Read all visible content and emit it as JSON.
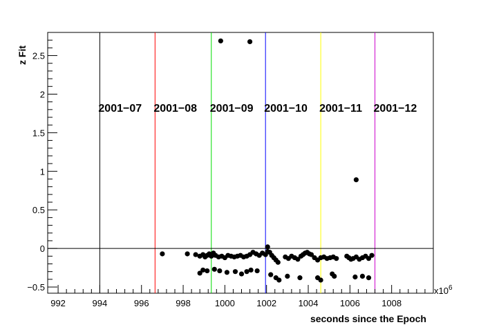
{
  "chart_data": {
    "type": "scatter",
    "title": "",
    "xlabel": "seconds since the Epoch",
    "ylabel": "z Fit",
    "x_multiplier": "x10",
    "x_multiplier_exp": "6",
    "xlim": [
      991.5,
      1010
    ],
    "ylim": [
      -0.58,
      2.8
    ],
    "x_ticks": [
      992,
      994,
      996,
      998,
      1000,
      1002,
      1004,
      1006,
      1008
    ],
    "y_ticks": [
      -0.5,
      0,
      0.5,
      1,
      1.5,
      2,
      2.5
    ],
    "y_tick_labels": [
      "−0.5",
      "0",
      "0.5",
      "1",
      "1.5",
      "2",
      "2.5"
    ],
    "grid": false,
    "zero_line": true,
    "month_markers": [
      {
        "x": 994.0,
        "label": "2001−07",
        "color": "#000000"
      },
      {
        "x": 996.65,
        "label": "2001−08",
        "color": "#ff0000"
      },
      {
        "x": 999.35,
        "label": "2001−09",
        "color": "#00dd00"
      },
      {
        "x": 1001.95,
        "label": "2001−10",
        "color": "#0000ff"
      },
      {
        "x": 1004.6,
        "label": "2001−11",
        "color": "#ffff00"
      },
      {
        "x": 1007.2,
        "label": "2001−12",
        "color": "#cc00cc"
      }
    ],
    "points": [
      [
        997.0,
        -0.07
      ],
      [
        998.2,
        -0.07
      ],
      [
        998.6,
        -0.08
      ],
      [
        998.8,
        -0.1
      ],
      [
        998.95,
        -0.08
      ],
      [
        999.05,
        -0.11
      ],
      [
        999.15,
        -0.09
      ],
      [
        999.25,
        -0.07
      ],
      [
        999.35,
        -0.1
      ],
      [
        999.45,
        -0.06
      ],
      [
        999.55,
        -0.09
      ],
      [
        999.7,
        -0.11
      ],
      [
        999.85,
        -0.1
      ],
      [
        1000.0,
        -0.12
      ],
      [
        1000.15,
        -0.09
      ],
      [
        1000.3,
        -0.1
      ],
      [
        1000.45,
        -0.11
      ],
      [
        1000.6,
        -0.1
      ],
      [
        1000.75,
        -0.09
      ],
      [
        1000.9,
        -0.11
      ],
      [
        1001.05,
        -0.1
      ],
      [
        1001.2,
        -0.08
      ],
      [
        1001.35,
        -0.05
      ],
      [
        1001.5,
        -0.07
      ],
      [
        1001.65,
        -0.09
      ],
      [
        1001.8,
        -0.06
      ],
      [
        1001.95,
        -0.08
      ],
      [
        1002.05,
        -0.04
      ],
      [
        1002.15,
        -0.05
      ],
      [
        1002.25,
        -0.09
      ],
      [
        1002.35,
        -0.12
      ],
      [
        1002.45,
        -0.15
      ],
      [
        1002.55,
        -0.18
      ],
      [
        1002.9,
        -0.11
      ],
      [
        1003.05,
        -0.13
      ],
      [
        1003.2,
        -0.1
      ],
      [
        1003.35,
        -0.12
      ],
      [
        1003.5,
        -0.14
      ],
      [
        1003.65,
        -0.1
      ],
      [
        1003.75,
        -0.08
      ],
      [
        1003.85,
        -0.06
      ],
      [
        1003.95,
        -0.05
      ],
      [
        1004.05,
        -0.07
      ],
      [
        1004.15,
        -0.08
      ],
      [
        1004.3,
        -0.12
      ],
      [
        1004.45,
        -0.15
      ],
      [
        1004.6,
        -0.12
      ],
      [
        1004.75,
        -0.11
      ],
      [
        1004.9,
        -0.13
      ],
      [
        1005.05,
        -0.12
      ],
      [
        1005.2,
        -0.11
      ],
      [
        1005.35,
        -0.13
      ],
      [
        1005.85,
        -0.1
      ],
      [
        1005.95,
        -0.12
      ],
      [
        1006.05,
        -0.14
      ],
      [
        1006.15,
        -0.13
      ],
      [
        1006.3,
        -0.11
      ],
      [
        1006.45,
        -0.14
      ],
      [
        1006.6,
        -0.12
      ],
      [
        1006.75,
        -0.1
      ],
      [
        1006.9,
        -0.13
      ],
      [
        1007.05,
        -0.09
      ],
      [
        998.8,
        -0.32
      ],
      [
        998.95,
        -0.28
      ],
      [
        999.15,
        -0.29
      ],
      [
        999.5,
        -0.27
      ],
      [
        999.75,
        -0.29
      ],
      [
        1000.1,
        -0.31
      ],
      [
        1000.5,
        -0.3
      ],
      [
        1000.8,
        -0.33
      ],
      [
        1001.05,
        -0.3
      ],
      [
        1001.25,
        -0.28
      ],
      [
        1001.55,
        -0.29
      ],
      [
        1002.2,
        -0.34
      ],
      [
        1002.45,
        -0.38
      ],
      [
        1002.6,
        -0.41
      ],
      [
        1003.0,
        -0.36
      ],
      [
        1003.6,
        -0.38
      ],
      [
        1004.45,
        -0.38
      ],
      [
        1004.6,
        -0.41
      ],
      [
        1005.15,
        -0.33
      ],
      [
        1005.25,
        -0.36
      ],
      [
        1006.25,
        -0.37
      ],
      [
        1006.6,
        -0.36
      ],
      [
        1006.9,
        -0.38
      ],
      [
        1006.3,
        0.89
      ],
      [
        1002.05,
        0.02
      ],
      [
        999.8,
        2.69
      ],
      [
        1001.2,
        2.68
      ]
    ]
  }
}
